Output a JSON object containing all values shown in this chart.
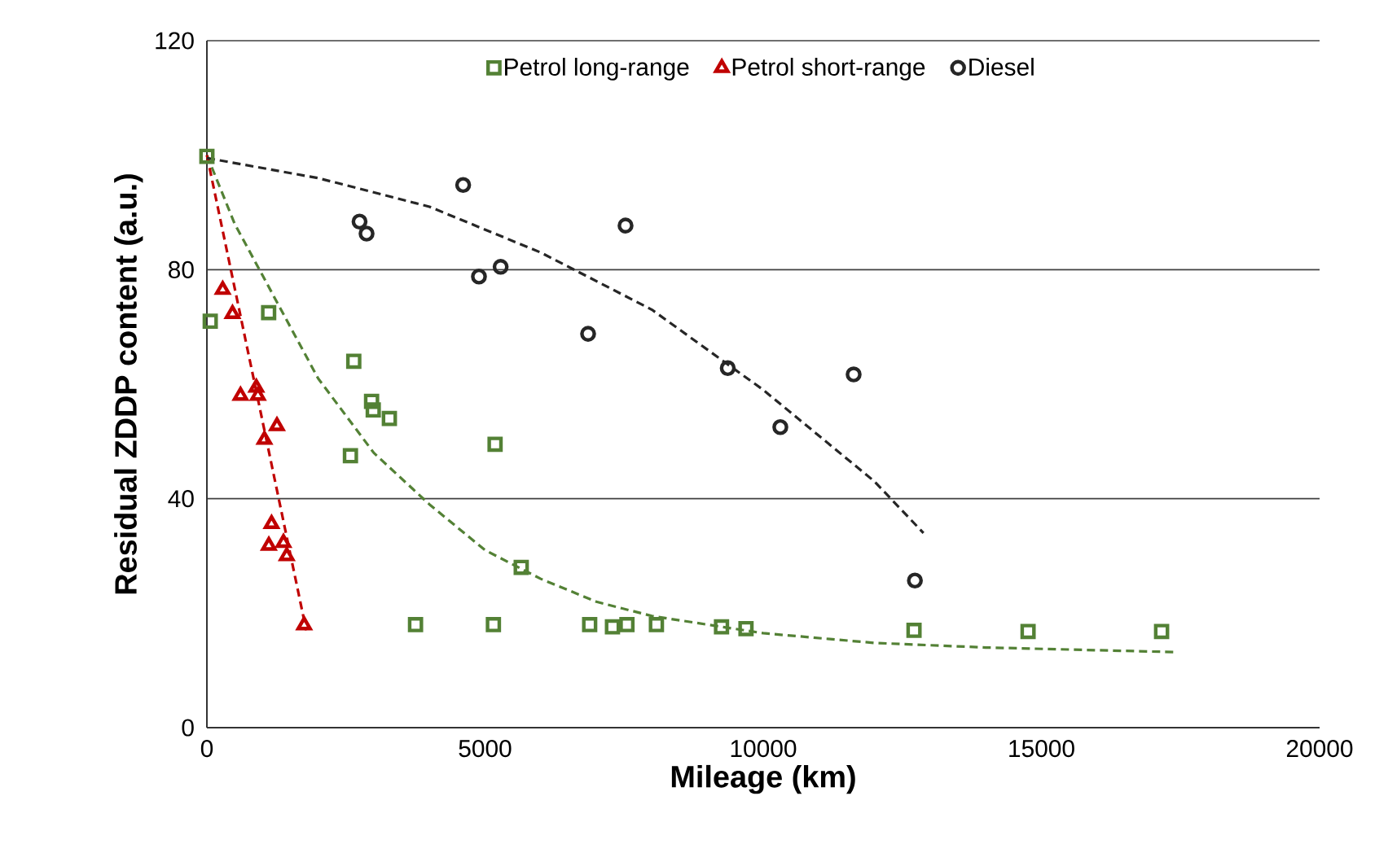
{
  "chart_data": {
    "type": "scatter",
    "xlabel": "Mileage (km)",
    "ylabel": "Residual ZDDP content (a.u.)",
    "xlim": [
      0,
      20000
    ],
    "ylim": [
      0,
      120
    ],
    "xticks": [
      0,
      5000,
      10000,
      15000,
      20000
    ],
    "yticks": [
      0,
      40,
      80,
      120
    ],
    "grid": "y",
    "legend": "top",
    "series": [
      {
        "name": "Petrol long-range",
        "color": "#538135",
        "marker": "square",
        "x": [
          0,
          60,
          1110,
          2640,
          2960,
          2990,
          3280,
          2580,
          5180,
          5650,
          3750,
          5150,
          6880,
          7290,
          7550,
          8080,
          9250,
          9690,
          9780,
          12710,
          14760,
          17160
        ],
        "values": [
          99.8,
          71,
          72.5,
          64,
          57,
          55.5,
          54,
          47.5,
          49.5,
          28,
          18,
          18,
          18,
          17.6,
          18,
          18,
          17.6,
          17.3,
          null,
          17,
          16.8,
          16.8
        ]
      },
      {
        "name": "Petrol short-range",
        "color": "#c00000",
        "marker": "triangle",
        "x": [
          284,
          460,
          507,
          604,
          888,
          917,
          1259,
          1034,
          1162,
          1113,
          1376,
          1435,
          1748
        ],
        "values": [
          76.5,
          72.3,
          null,
          58,
          59.4,
          58,
          52.7,
          50.3,
          35.6,
          31.8,
          32.3,
          30,
          17.9
        ]
      },
      {
        "name": "Diesel",
        "color": "#262626",
        "marker": "circle",
        "x": [
          2744,
          2870,
          4606,
          4890,
          5280,
          7525,
          6852,
          9362,
          11625,
          10307,
          12726
        ],
        "values": [
          88.4,
          86.3,
          94.8,
          78.8,
          80.5,
          87.7,
          68.8,
          62.8,
          61.7,
          52.5,
          25.7
        ]
      },
      {
        "type": "line",
        "line_style": "dashed",
        "marker": "none",
        "color": "#538135",
        "x": [
          0,
          500,
          1000,
          2000,
          3000,
          4000,
          5000,
          6000,
          7000,
          8000,
          10000,
          12000,
          14000,
          17400
        ],
        "values": [
          100,
          88,
          79,
          61,
          48,
          39,
          31,
          26,
          22,
          19.5,
          16.5,
          14.8,
          14,
          13.2
        ]
      },
      {
        "type": "line",
        "line_style": "dashed",
        "marker": "none",
        "color": "#c00000",
        "x": [
          0,
          1786
        ],
        "values": [
          100,
          17
        ]
      },
      {
        "type": "line",
        "line_style": "dashed",
        "marker": "none",
        "color": "#262626",
        "x": [
          0,
          2000,
          4000,
          6000,
          8000,
          10000,
          12000,
          12880
        ],
        "values": [
          99.5,
          96,
          91,
          83,
          73,
          59,
          43,
          34
        ]
      }
    ]
  }
}
